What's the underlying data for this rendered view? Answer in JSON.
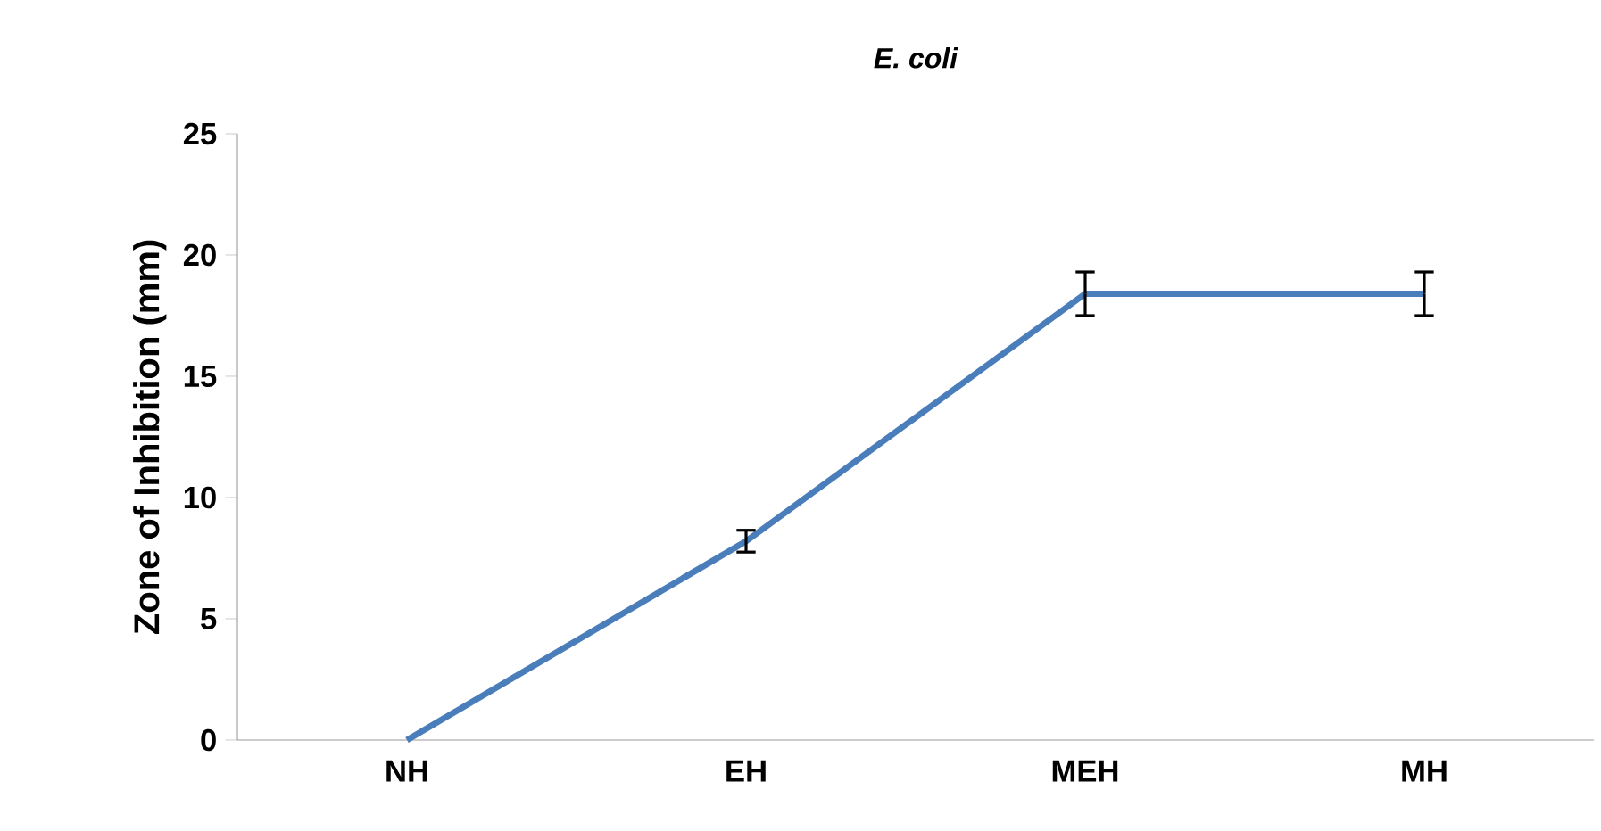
{
  "chart_data": {
    "type": "line",
    "title": "E. coli",
    "ylabel": "Zone of Inhibition (mm)",
    "categories": [
      "NH",
      "EH",
      "MEH",
      "MH"
    ],
    "series": [
      {
        "color": "#4a7ebb",
        "values": [
          0,
          8.2,
          18.4,
          18.4
        ],
        "errors": [
          null,
          0.45,
          0.9,
          0.9
        ]
      }
    ],
    "ylim": [
      0,
      25
    ],
    "yticks": [
      0,
      5,
      10,
      15,
      20,
      25
    ],
    "grid": false,
    "marker": "none",
    "line_style": "solid"
  }
}
